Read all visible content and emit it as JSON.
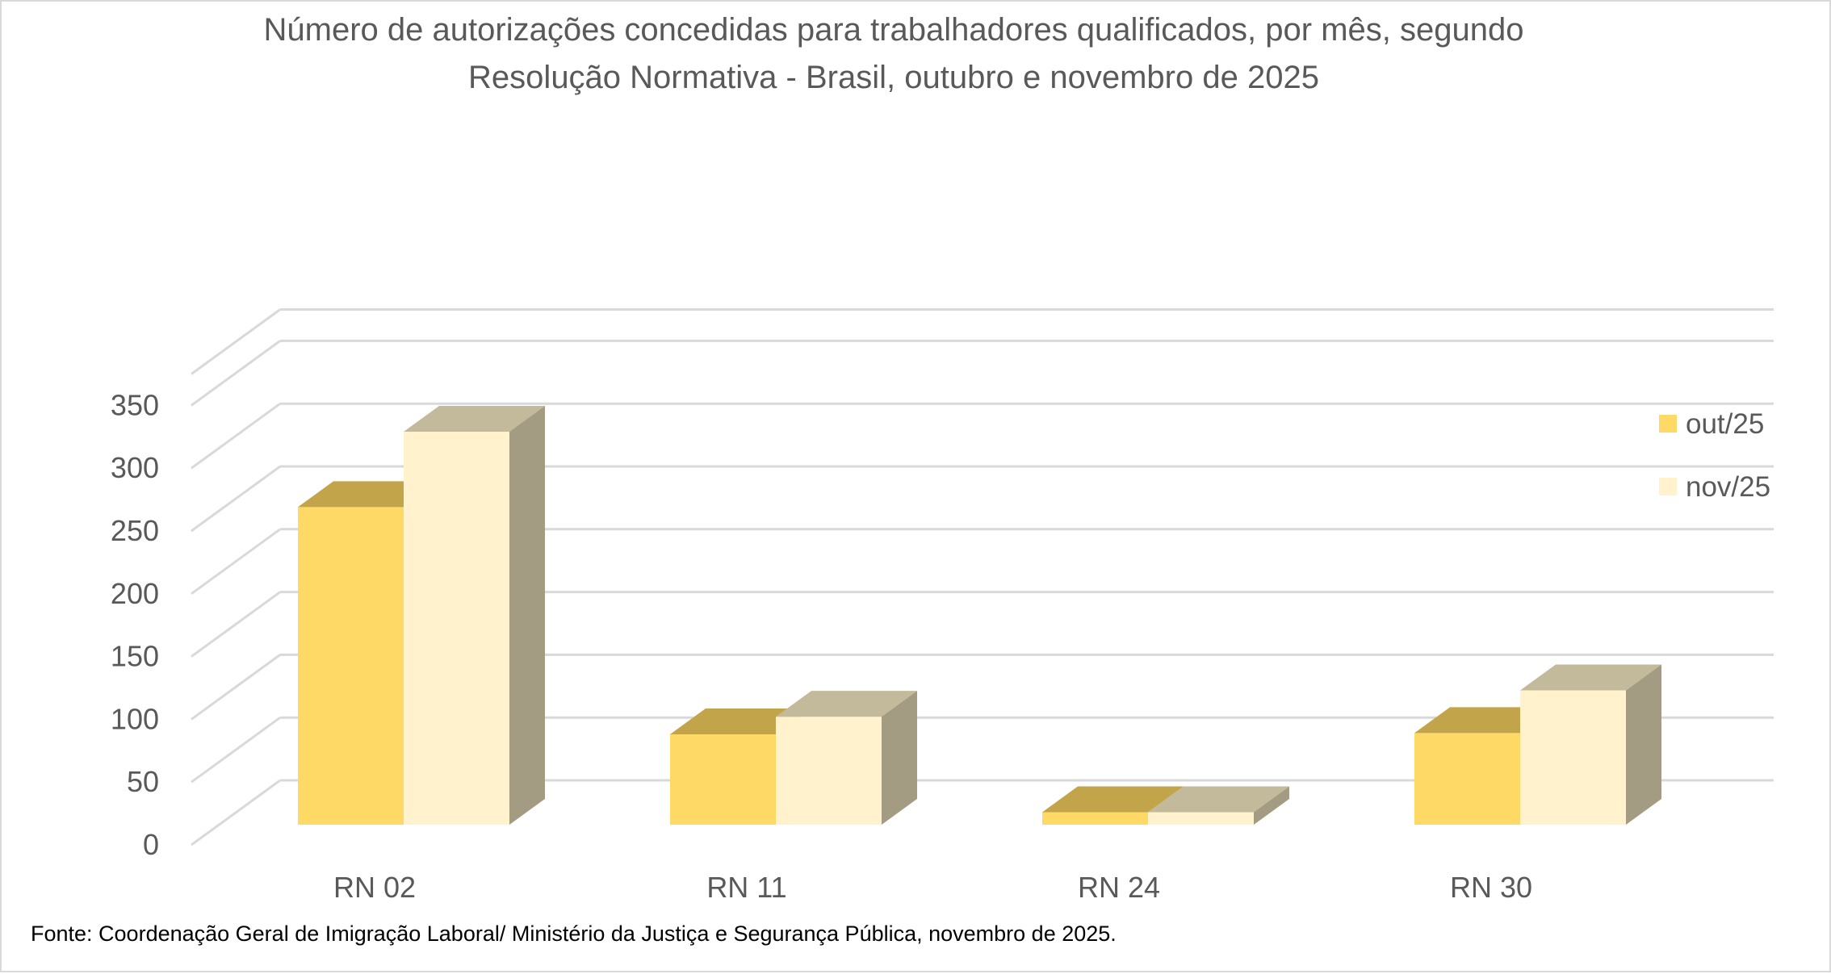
{
  "chart_data": {
    "type": "bar",
    "variant": "3d-clustered-column",
    "title": [
      "Número de autorizações concedidas para trabalhadores qualificados, por mês, segundo",
      "Resolução Normativa - Brasil, outubro e novembro de 2025"
    ],
    "categories": [
      "RN 02",
      "RN 11",
      "RN 24",
      "RN 30"
    ],
    "series": [
      {
        "name": "out/25",
        "values": [
          253,
          72,
          10,
          73
        ],
        "color": "#FFD966",
        "top_color": "#C2A54B",
        "side_color": "#BFA04A"
      },
      {
        "name": "nov/25",
        "values": [
          313,
          86,
          10,
          107
        ],
        "color": "#FFF2CC",
        "top_color": "#C3B99B",
        "side_color": "#A39C82"
      }
    ],
    "y_ticks": [
      "0",
      "50",
      "100",
      "150",
      "200",
      "250",
      "300",
      "350"
    ],
    "ylim": [
      0,
      375
    ],
    "xlabel": "",
    "ylabel": "",
    "grid": true,
    "legend_position": "right",
    "source": "Fonte: Coordenação Geral de Imigração Laboral/ Ministério da Justiça e Segurança Pública,  novembro de 2025."
  }
}
